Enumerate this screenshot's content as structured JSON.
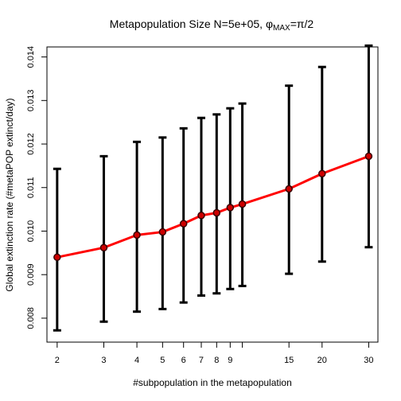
{
  "chart_data": {
    "type": "line",
    "title": "Metapopulation Size N=5e+05, φMAX=π/2",
    "title_parts": {
      "main": "Metapopulation Size N=5e+05, ",
      "phi": "φ",
      "subscript": "MAX",
      "suffix": "=π/2"
    },
    "xlabel": "#subpopulation in the metapopulation",
    "ylabel": "Global extinction rate (#metaPOP extinct/day)",
    "x_scale": "log",
    "xlim": [
      1.83,
      32.5
    ],
    "ylim": [
      0.00745,
      0.01423
    ],
    "x_ticks": [
      2,
      3,
      4,
      5,
      6,
      7,
      8,
      9,
      10,
      15,
      20,
      30
    ],
    "x_tick_labels": [
      "2",
      "3",
      "4",
      "5",
      "6",
      "7",
      "8",
      "9",
      "",
      "15",
      "20",
      "30"
    ],
    "y_ticks": [
      0.008,
      0.009,
      0.01,
      0.011,
      0.012,
      0.013,
      0.014
    ],
    "y_tick_labels": [
      "0.008",
      "0.009",
      "0.010",
      "0.011",
      "0.012",
      "0.013",
      "0.014"
    ],
    "grid": false,
    "series": [
      {
        "x": [
          2,
          3,
          4,
          5,
          6,
          7,
          8,
          9,
          10,
          15,
          20,
          30
        ],
        "y": [
          0.0094,
          0.00962,
          0.00991,
          0.00998,
          0.01017,
          0.01036,
          0.01042,
          0.01054,
          0.01062,
          0.01097,
          0.01132,
          0.01172
        ],
        "lower": [
          0.00772,
          0.00792,
          0.00815,
          0.00821,
          0.00836,
          0.00852,
          0.00857,
          0.00867,
          0.00874,
          0.00902,
          0.0093,
          0.00963
        ],
        "upper": [
          0.01143,
          0.01172,
          0.01205,
          0.01215,
          0.01236,
          0.0126,
          0.01268,
          0.01282,
          0.01293,
          0.01334,
          0.01377,
          0.01426
        ]
      }
    ],
    "colors": {
      "line": "#ff0000",
      "marker_fill": "#cc0000",
      "marker_edge": "#3a0000",
      "error_bars": "#000000"
    }
  }
}
